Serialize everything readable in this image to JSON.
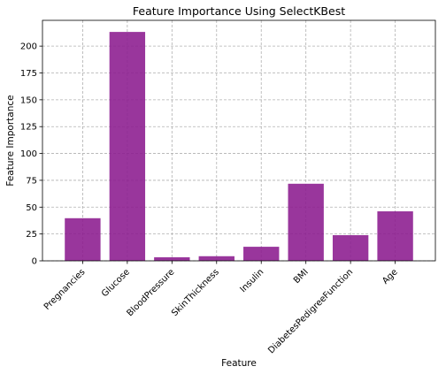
{
  "chart_data": {
    "type": "bar",
    "title": "Feature Importance Using SelectKBest",
    "xlabel": "Feature",
    "ylabel": "Feature Importance",
    "categories": [
      "Pregnancies",
      "Glucose",
      "BloodPressure",
      "SkinThickness",
      "Insulin",
      "BMI",
      "DiabetesPedigreeFunction",
      "Age"
    ],
    "values": [
      39.7,
      213.2,
      3.3,
      4.3,
      13.1,
      71.8,
      23.9,
      46.1
    ],
    "yticks": [
      "0",
      "25",
      "50",
      "75",
      "100",
      "125",
      "150",
      "175",
      "200"
    ],
    "ylim": [
      0,
      224
    ],
    "grid": true,
    "bar_color": "#8b1a8e"
  }
}
